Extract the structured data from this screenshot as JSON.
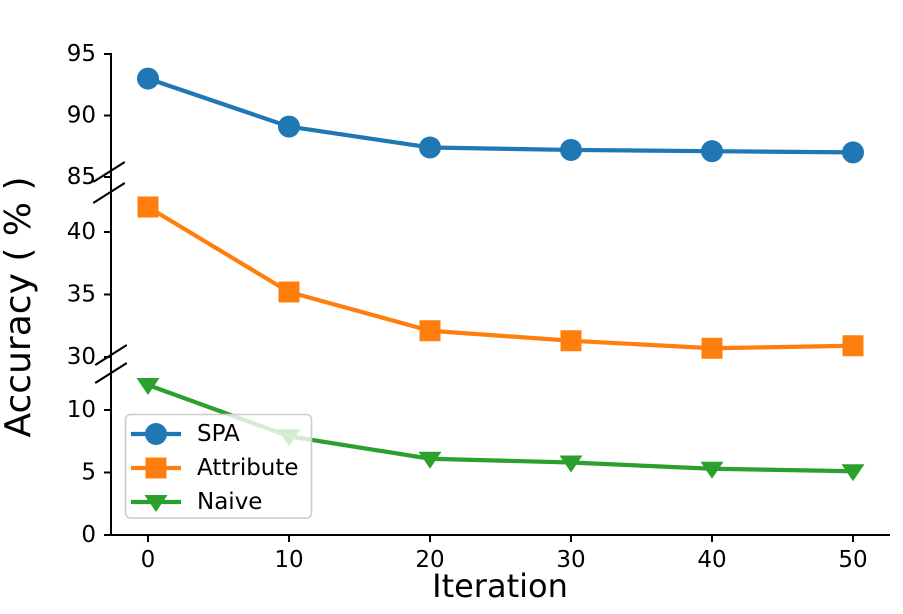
{
  "chart_data": {
    "type": "line",
    "title": "",
    "xlabel": "Iteration",
    "ylabel": "Accuracy ( % )",
    "x": [
      0,
      10,
      20,
      30,
      40,
      50
    ],
    "x_tick_labels": [
      "0",
      "10",
      "20",
      "30",
      "40",
      "50"
    ],
    "series": [
      {
        "name": "SPA",
        "color": "#1f77b4",
        "marker": "circle",
        "values": [
          93.0,
          89.1,
          87.4,
          87.2,
          87.1,
          87.0
        ]
      },
      {
        "name": "Attribute",
        "color": "#ff7f0e",
        "marker": "square",
        "values": [
          42.0,
          35.2,
          32.1,
          31.3,
          30.7,
          30.9
        ]
      },
      {
        "name": "Naive",
        "color": "#2ca02c",
        "marker": "triangle-down",
        "values": [
          12.0,
          7.9,
          6.1,
          5.8,
          5.3,
          5.1
        ]
      }
    ],
    "y_axis": {
      "broken": true,
      "segments_top_to_bottom": [
        {
          "tick_labels": [
            "95",
            "90",
            "85"
          ],
          "value_range": [
            85,
            95
          ]
        },
        {
          "tick_labels": [
            "40",
            "35",
            "30"
          ],
          "value_range": [
            30,
            43.5
          ]
        },
        {
          "tick_labels": [
            "10",
            "5",
            "0"
          ],
          "value_range": [
            0,
            12.4
          ]
        }
      ],
      "break_marks": 2
    },
    "legend": {
      "position": "lower-left",
      "items": [
        {
          "label": "SPA"
        },
        {
          "label": "Attribute"
        },
        {
          "label": "Naive"
        }
      ]
    },
    "grid": false,
    "axis_color": "#000000",
    "background": "#ffffff"
  }
}
